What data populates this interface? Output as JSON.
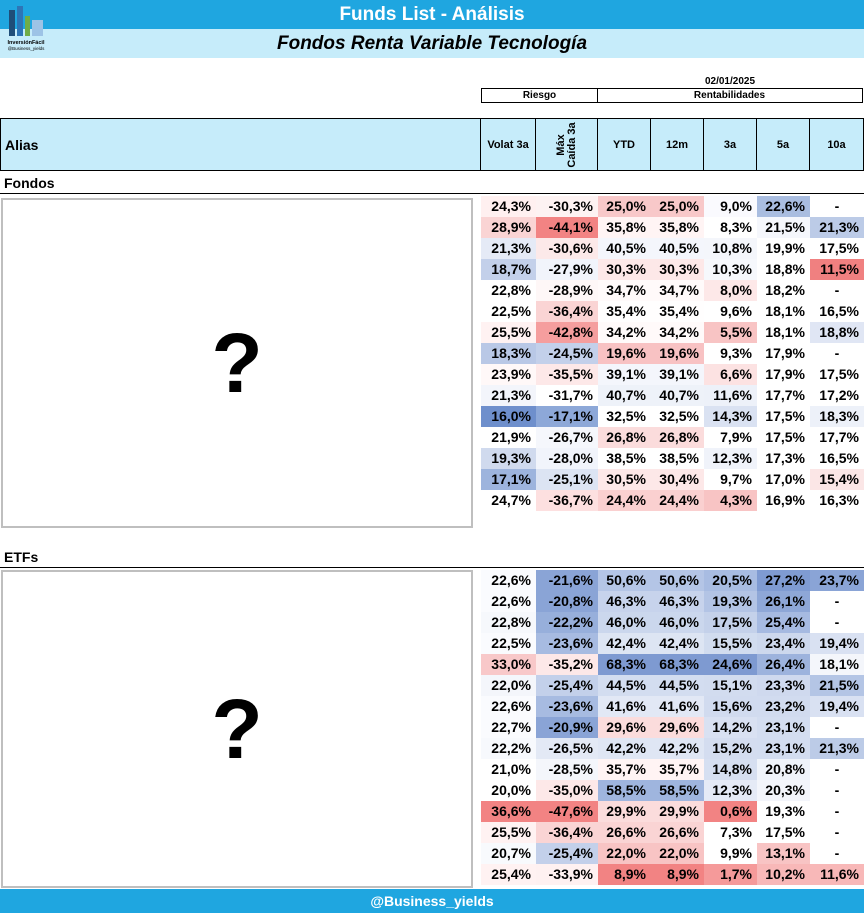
{
  "header": {
    "title": "Funds List - Análisis",
    "subtitle": "Fondos Renta Variable Tecnología",
    "logo_text": "InversiónFácil",
    "logo_sub": "@Business_yields"
  },
  "date": "02/01/2025",
  "groups": {
    "risk": "Riesgo",
    "returns": "Rentabilidades"
  },
  "columns": {
    "alias": "Alias",
    "volat": "Volat 3a",
    "caida": "Máx Caída 3a",
    "ytd": "YTD",
    "m12": "12m",
    "a3": "3a",
    "a5": "5a",
    "a10": "10a"
  },
  "fondos": {
    "label": "Fondos",
    "placeholder": "?",
    "rows": [
      [
        "24,3%",
        "-30,3%",
        "25,0%",
        "25,0%",
        "9,0%",
        "22,6%",
        "-"
      ],
      [
        "28,9%",
        "-44,1%",
        "35,8%",
        "35,8%",
        "8,3%",
        "21,5%",
        "21,3%"
      ],
      [
        "21,3%",
        "-30,6%",
        "40,5%",
        "40,5%",
        "10,8%",
        "19,9%",
        "17,5%"
      ],
      [
        "18,7%",
        "-27,9%",
        "30,3%",
        "30,3%",
        "10,3%",
        "18,8%",
        "11,5%"
      ],
      [
        "22,8%",
        "-28,9%",
        "34,7%",
        "34,7%",
        "8,0%",
        "18,2%",
        "-"
      ],
      [
        "22,5%",
        "-36,4%",
        "35,4%",
        "35,4%",
        "9,6%",
        "18,1%",
        "16,5%"
      ],
      [
        "25,5%",
        "-42,8%",
        "34,2%",
        "34,2%",
        "5,5%",
        "18,1%",
        "18,8%"
      ],
      [
        "18,3%",
        "-24,5%",
        "19,6%",
        "19,6%",
        "9,3%",
        "17,9%",
        "-"
      ],
      [
        "23,9%",
        "-35,5%",
        "39,1%",
        "39,1%",
        "6,6%",
        "17,9%",
        "17,5%"
      ],
      [
        "21,3%",
        "-31,7%",
        "40,7%",
        "40,7%",
        "11,6%",
        "17,7%",
        "17,2%"
      ],
      [
        "16,0%",
        "-17,1%",
        "32,5%",
        "32,5%",
        "14,3%",
        "17,5%",
        "18,3%"
      ],
      [
        "21,9%",
        "-26,7%",
        "26,8%",
        "26,8%",
        "7,9%",
        "17,5%",
        "17,7%"
      ],
      [
        "19,3%",
        "-28,0%",
        "38,5%",
        "38,5%",
        "12,3%",
        "17,3%",
        "16,5%"
      ],
      [
        "17,1%",
        "-25,1%",
        "30,5%",
        "30,4%",
        "9,7%",
        "17,0%",
        "15,4%"
      ],
      [
        "24,7%",
        "-36,7%",
        "24,4%",
        "24,4%",
        "4,3%",
        "16,9%",
        "16,3%"
      ]
    ],
    "colors": [
      [
        "#fff0f0",
        "#fdf2f2",
        "#f8c8c9",
        "#f8c8c9",
        "#fafafe",
        "#a9bde0",
        "#ffffff"
      ],
      [
        "#fad4d4",
        "#f28383",
        "#fff4f4",
        "#fff4f4",
        "#ffffff",
        "#f5f7fc",
        "#bccbe7"
      ],
      [
        "#e5eaf6",
        "#fce9e9",
        "#f4f6fc",
        "#f4f6fc",
        "#f4f6fb",
        "#ffffff",
        "#ffffff"
      ],
      [
        "#c3d0ea",
        "#f1f4fb",
        "#fde8e8",
        "#fde8e8",
        "#f6f8fc",
        "#ffffff",
        "#f08080"
      ],
      [
        "#ffffff",
        "#fef7f7",
        "#fffafa",
        "#fffafa",
        "#fde8e8",
        "#ffffff",
        "#ffffff"
      ],
      [
        "#ffffff",
        "#fad4d4",
        "#fffefe",
        "#fffefe",
        "#ffffff",
        "#ffffff",
        "#ffffff"
      ],
      [
        "#fff2f2",
        "#f59e9e",
        "#fffafa",
        "#fffafa",
        "#f8c4c4",
        "#ffffff",
        "#e0e6f4"
      ],
      [
        "#b9c8e6",
        "#c3d0ea",
        "#f8c2c3",
        "#f8c2c3",
        "#ffffff",
        "#ffffff",
        "#ffffff"
      ],
      [
        "#fff8f8",
        "#fde8e8",
        "#f4f6fc",
        "#f4f6fc",
        "#fce2e2",
        "#ffffff",
        "#ffffff"
      ],
      [
        "#f3f5fb",
        "#ffffff",
        "#eef2f9",
        "#eef2f9",
        "#edf1f9",
        "#ffffff",
        "#ffffff"
      ],
      [
        "#6e8fcc",
        "#8da8d8",
        "#ffffff",
        "#ffffff",
        "#dae2f2",
        "#ffffff",
        "#edf1f9"
      ],
      [
        "#ffffff",
        "#f5f7fc",
        "#fbdcdc",
        "#fbdcdc",
        "#ffffff",
        "#ffffff",
        "#ffffff"
      ],
      [
        "#d0daee",
        "#f1f4fb",
        "#ffffff",
        "#ffffff",
        "#f0f3fa",
        "#ffffff",
        "#ffffff"
      ],
      [
        "#9db4dd",
        "#dce4f3",
        "#fde8e8",
        "#fde8e8",
        "#ffffff",
        "#ffffff",
        "#fbe6e6"
      ],
      [
        "#ffffff",
        "#fde0e0",
        "#fad0d0",
        "#fad0d0",
        "#f8c4c4",
        "#ffffff",
        "#ffffff"
      ]
    ]
  },
  "etfs": {
    "label": "ETFs",
    "placeholder": "?",
    "rows": [
      [
        "22,6%",
        "-21,6%",
        "50,6%",
        "50,6%",
        "20,5%",
        "27,2%",
        "23,7%"
      ],
      [
        "22,6%",
        "-20,8%",
        "46,3%",
        "46,3%",
        "19,3%",
        "26,1%",
        "-"
      ],
      [
        "22,8%",
        "-22,2%",
        "46,0%",
        "46,0%",
        "17,5%",
        "25,4%",
        "-"
      ],
      [
        "22,5%",
        "-23,6%",
        "42,4%",
        "42,4%",
        "15,5%",
        "23,4%",
        "19,4%"
      ],
      [
        "33,0%",
        "-35,2%",
        "68,3%",
        "68,3%",
        "24,6%",
        "26,4%",
        "18,1%"
      ],
      [
        "22,0%",
        "-25,4%",
        "44,5%",
        "44,5%",
        "15,1%",
        "23,3%",
        "21,5%"
      ],
      [
        "22,6%",
        "-23,6%",
        "41,6%",
        "41,6%",
        "15,6%",
        "23,2%",
        "19,4%"
      ],
      [
        "22,7%",
        "-20,9%",
        "29,6%",
        "29,6%",
        "14,2%",
        "23,1%",
        "-"
      ],
      [
        "22,2%",
        "-26,5%",
        "42,2%",
        "42,2%",
        "15,2%",
        "23,1%",
        "21,3%"
      ],
      [
        "21,0%",
        "-28,5%",
        "35,7%",
        "35,7%",
        "14,8%",
        "20,8%",
        "-"
      ],
      [
        "20,0%",
        "-35,0%",
        "58,5%",
        "58,5%",
        "12,3%",
        "20,3%",
        "-"
      ],
      [
        "36,6%",
        "-47,6%",
        "29,9%",
        "29,9%",
        "0,6%",
        "19,3%",
        "-"
      ],
      [
        "25,5%",
        "-36,4%",
        "26,6%",
        "26,6%",
        "7,3%",
        "17,5%",
        "-"
      ],
      [
        "20,7%",
        "-25,4%",
        "22,0%",
        "22,0%",
        "9,9%",
        "13,1%",
        "-"
      ],
      [
        "25,4%",
        "-33,9%",
        "8,9%",
        "8,9%",
        "1,7%",
        "10,2%",
        "11,6%"
      ]
    ],
    "colors": [
      [
        "#fafbfe",
        "#8aa4d6",
        "#b4c5e6",
        "#b4c5e6",
        "#a8bce2",
        "#7f9bd2",
        "#8aa4d6"
      ],
      [
        "#fafbfe",
        "#8aa4d6",
        "#c7d3ec",
        "#c7d3ec",
        "#b3c4e5",
        "#8ea7d7",
        "#ffffff"
      ],
      [
        "#f6f8fc",
        "#97afdb",
        "#cbd7ed",
        "#cbd7ed",
        "#c4d1ea",
        "#a6bae1",
        "#ffffff"
      ],
      [
        "#fafbfe",
        "#a7bbe1",
        "#dde5f3",
        "#dde5f3",
        "#d1dcef",
        "#cdd8ed",
        "#d9e1f2"
      ],
      [
        "#f8c8c9",
        "#fde8e8",
        "#7e9ad1",
        "#7e9ad1",
        "#7e9ad1",
        "#9db3dd",
        "#f4f6fb"
      ],
      [
        "#f4f6fb",
        "#c3d0ea",
        "#d3ddf0",
        "#d3ddf0",
        "#d2dcef",
        "#cfd9ee",
        "#b4c5e5"
      ],
      [
        "#fafbfe",
        "#a7bbe1",
        "#e2e8f5",
        "#e2e8f5",
        "#d1dbef",
        "#d1dbef",
        "#d9e1f2"
      ],
      [
        "#fafbfe",
        "#8aa4d6",
        "#fbdcdc",
        "#fbdcdc",
        "#d9e1f2",
        "#d3ddf0",
        "#ffffff"
      ],
      [
        "#f7f9fd",
        "#e3e9f5",
        "#dfe6f4",
        "#dfe6f4",
        "#d4ddf0",
        "#d3ddf0",
        "#bccbe7"
      ],
      [
        "#ffffff",
        "#f4f6fb",
        "#fff4f4",
        "#fff4f4",
        "#d6dff1",
        "#eff3fa",
        "#ffffff"
      ],
      [
        "#ffffff",
        "#fde8e8",
        "#9fb5de",
        "#9fb5de",
        "#e5eaf6",
        "#f3f5fb",
        "#ffffff"
      ],
      [
        "#f28383",
        "#f28383",
        "#fbdcdc",
        "#fbdcdc",
        "#f28383",
        "#ffffff",
        "#ffffff"
      ],
      [
        "#fff2f2",
        "#fad4d4",
        "#fad4d4",
        "#fad4d4",
        "#ffffff",
        "#ffffff",
        "#ffffff"
      ],
      [
        "#f8fafd",
        "#c3d0ea",
        "#f8c4c4",
        "#f8c4c4",
        "#ffffff",
        "#f8c4c4",
        "#ffffff"
      ],
      [
        "#fff2f2",
        "#fef1f1",
        "#f28383",
        "#f28383",
        "#f59a9a",
        "#f8b8b8",
        "#f8b8b8"
      ]
    ]
  },
  "footer": "@Business_yields"
}
